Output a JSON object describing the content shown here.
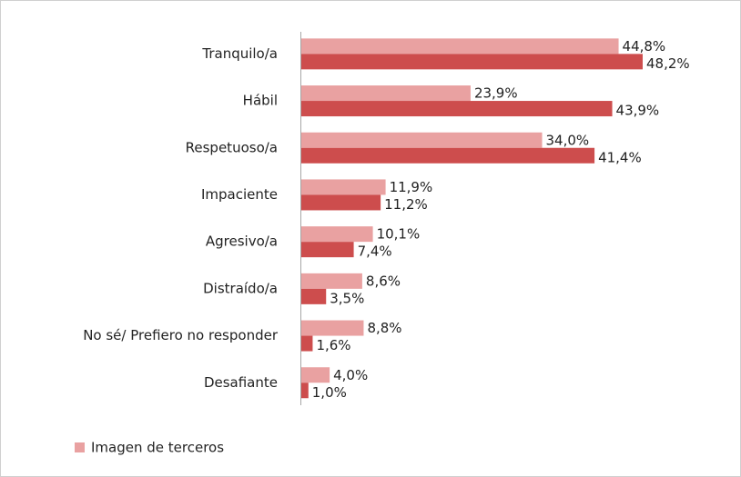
{
  "chart_data": {
    "type": "bar",
    "orientation": "horizontal",
    "categories": [
      "Tranquilo/a",
      "Hábil",
      "Respetuoso/a",
      "Impaciente",
      "Agresivo/a",
      "Distraído/a",
      "No sé/ Prefiero no responder",
      "Desafiante"
    ],
    "series": [
      {
        "name": "Imagen de terceros",
        "color": "#e9a1a1",
        "values": [
          44.8,
          23.9,
          34.0,
          11.9,
          10.1,
          8.6,
          8.8,
          4.0
        ],
        "value_labels": [
          "44,8%",
          "23,9%",
          "34,0%",
          "11,9%",
          "10,1%",
          "8,6%",
          "8,8%",
          "4,0%"
        ]
      },
      {
        "color": "#cd4d4d",
        "values": [
          48.2,
          43.9,
          41.4,
          11.2,
          7.4,
          3.5,
          1.6,
          1.0
        ],
        "value_labels": [
          "48,2%",
          "43,9%",
          "41,4%",
          "11,2%",
          "7,4%",
          "3,5%",
          "1,6%",
          "1,0%"
        ]
      }
    ],
    "legend": "bottom-left"
  }
}
